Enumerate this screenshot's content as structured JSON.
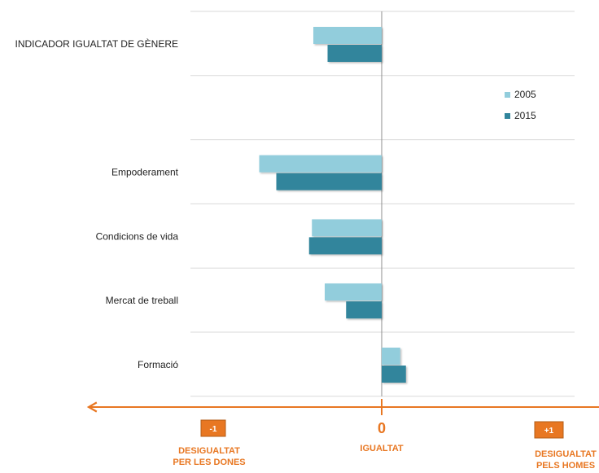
{
  "chart_data": {
    "type": "bar",
    "orientation": "horizontal",
    "categories": [
      "INDICADOR IGUALTAT DE GÈNERE",
      "",
      "Empoderament",
      "Condicions de vida",
      "Mercat de treball",
      "Formació"
    ],
    "series": [
      {
        "name": "2005",
        "color": "#92cddc",
        "values": [
          -0.24,
          null,
          -0.43,
          -0.245,
          -0.2,
          0.065
        ]
      },
      {
        "name": "2015",
        "color": "#31859c",
        "values": [
          -0.19,
          null,
          -0.37,
          -0.255,
          -0.125,
          0.085
        ]
      }
    ],
    "xlim": [
      -1,
      1
    ],
    "grid": true,
    "legend_position": "right",
    "axis_annotations": {
      "zero_label": "0",
      "center_caption": "IGUALTAT",
      "left_box": "-1",
      "right_box": "+1",
      "left_caption": [
        "DESIGUALTAT",
        "PER LES DONES"
      ],
      "right_caption": [
        "DESIGUALTAT",
        "PELS HOMES"
      ],
      "accent_color": "#e87722"
    }
  }
}
